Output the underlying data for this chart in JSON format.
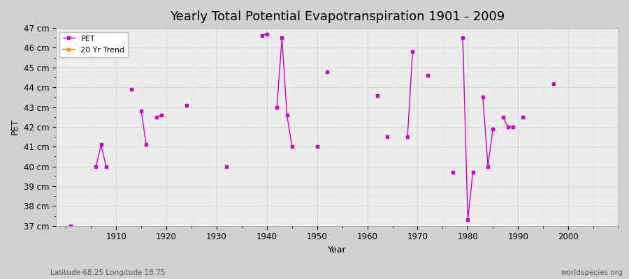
{
  "title": "Yearly Total Potential Evapotranspiration 1901 - 2009",
  "xlabel": "Year",
  "ylabel": "PET",
  "subtitle": "Latitude 68.25 Longitude 18.75",
  "watermark": "worldspecies.org",
  "legend_entries": [
    "PET",
    "20 Yr Trend"
  ],
  "legend_colors": [
    "#cc00cc",
    "#ff9900"
  ],
  "pet_color": "#cc00cc",
  "trend_color": "#ff9900",
  "ylim": [
    37,
    47
  ],
  "xlim": [
    1898,
    2010
  ],
  "ytick_labels": [
    "37 cm",
    "38 cm",
    "39 cm",
    "40 cm",
    "41 cm",
    "42 cm",
    "43 cm",
    "44 cm",
    "45 cm",
    "46 cm",
    "47 cm"
  ],
  "ytick_values": [
    37,
    38,
    39,
    40,
    41,
    42,
    43,
    44,
    45,
    46,
    47
  ],
  "xtick_values": [
    1910,
    1920,
    1930,
    1940,
    1950,
    1960,
    1970,
    1980,
    1990,
    2000
  ],
  "pet_data": [
    [
      1901,
      37.0
    ],
    [
      1906,
      40.0
    ],
    [
      1907,
      41.1
    ],
    [
      1908,
      40.0
    ],
    [
      1913,
      43.9
    ],
    [
      1915,
      42.8
    ],
    [
      1916,
      41.1
    ],
    [
      1918,
      42.5
    ],
    [
      1919,
      42.6
    ],
    [
      1924,
      43.1
    ],
    [
      1932,
      40.0
    ],
    [
      1939,
      46.6
    ],
    [
      1940,
      46.7
    ],
    [
      1942,
      43.0
    ],
    [
      1943,
      46.5
    ],
    [
      1944,
      42.6
    ],
    [
      1945,
      41.0
    ],
    [
      1950,
      41.0
    ],
    [
      1952,
      44.8
    ],
    [
      1962,
      43.6
    ],
    [
      1964,
      41.5
    ],
    [
      1968,
      41.5
    ],
    [
      1969,
      45.8
    ],
    [
      1972,
      44.6
    ],
    [
      1977,
      39.7
    ],
    [
      1979,
      46.5
    ],
    [
      1980,
      37.3
    ],
    [
      1981,
      39.7
    ],
    [
      1983,
      43.5
    ],
    [
      1984,
      40.0
    ],
    [
      1985,
      41.9
    ],
    [
      1987,
      42.5
    ],
    [
      1988,
      42.0
    ],
    [
      1989,
      42.0
    ],
    [
      1991,
      42.5
    ],
    [
      1997,
      44.2
    ]
  ],
  "title_fontsize": 13,
  "axis_fontsize": 9,
  "tick_fontsize": 8.5,
  "grid_color": "#cccccc",
  "fig_bg": "#d0d0d0",
  "ax_bg": "#ececec"
}
